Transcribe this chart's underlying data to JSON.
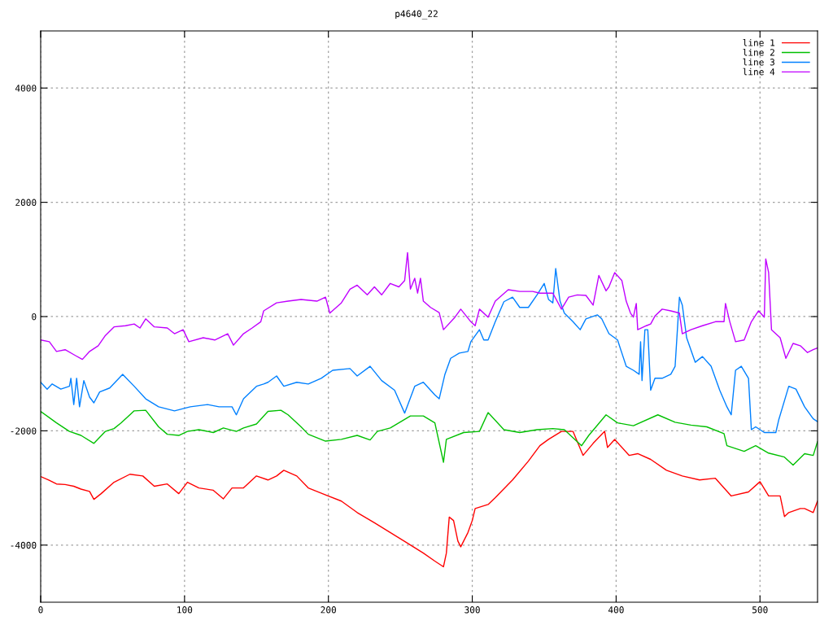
{
  "chart_data": {
    "type": "line",
    "title": "p4640_22",
    "xlim": [
      0,
      540
    ],
    "ylim": [
      -5000,
      5000
    ],
    "xticks": [
      0,
      100,
      200,
      300,
      400,
      500
    ],
    "yticks": [
      -4000,
      -2000,
      0,
      2000,
      4000
    ],
    "grid": true,
    "legend": "top right",
    "line_style": "solid",
    "marker": "none",
    "series": [
      {
        "name": "line 1",
        "color": "#ff0000",
        "x": [
          0,
          5.6,
          11,
          17,
          23,
          28,
          34,
          37,
          42,
          51,
          62,
          71,
          79,
          88,
          96,
          102,
          110,
          120,
          127,
          133,
          141,
          150,
          158,
          164,
          169,
          178,
          186,
          198,
          209,
          220,
          232,
          243,
          254,
          266,
          274,
          280,
          282,
          284,
          287,
          290,
          292,
          297,
          300,
          302,
          311,
          316,
          328,
          339,
          347,
          353,
          362,
          370,
          377,
          384,
          392,
          394,
          399,
          409,
          415,
          424,
          435,
          446,
          458,
          469,
          480,
          492,
          500,
          506,
          514,
          517,
          520,
          528,
          531,
          537,
          540
        ],
        "values": [
          -2800,
          -2860,
          -2930,
          -2940,
          -2970,
          -3020,
          -3060,
          -3200,
          -3100,
          -2900,
          -2760,
          -2790,
          -2970,
          -2930,
          -3100,
          -2900,
          -3000,
          -3040,
          -3190,
          -3000,
          -3000,
          -2790,
          -2860,
          -2790,
          -2690,
          -2790,
          -3000,
          -3120,
          -3230,
          -3430,
          -3610,
          -3780,
          -3950,
          -4140,
          -4280,
          -4380,
          -4140,
          -3510,
          -3570,
          -3930,
          -4030,
          -3780,
          -3570,
          -3360,
          -3290,
          -3170,
          -2860,
          -2530,
          -2260,
          -2150,
          -2010,
          -2010,
          -2430,
          -2220,
          -2010,
          -2290,
          -2150,
          -2430,
          -2400,
          -2500,
          -2690,
          -2790,
          -2860,
          -2830,
          -3140,
          -3070,
          -2890,
          -3140,
          -3140,
          -3500,
          -3430,
          -3360,
          -3360,
          -3430,
          -3230
        ]
      },
      {
        "name": "line 2",
        "color": "#00c000",
        "x": [
          0,
          11,
          20,
          28,
          37,
          45,
          51,
          56,
          65,
          73,
          82,
          88,
          96,
          102,
          110,
          120,
          127,
          136,
          141,
          150,
          158,
          167,
          172,
          181,
          186,
          198,
          209,
          220,
          229,
          234,
          243,
          257,
          266,
          274,
          280,
          282,
          294,
          305,
          311,
          322,
          333,
          345,
          356,
          364,
          376,
          381,
          393,
          401,
          412,
          429,
          441,
          452,
          463,
          475,
          477,
          489,
          497,
          506,
          517,
          523,
          531,
          537,
          540
        ],
        "values": [
          -1660,
          -1860,
          -2010,
          -2080,
          -2220,
          -2010,
          -1960,
          -1860,
          -1650,
          -1640,
          -1930,
          -2060,
          -2080,
          -2010,
          -1980,
          -2030,
          -1950,
          -2010,
          -1950,
          -1880,
          -1660,
          -1640,
          -1720,
          -1930,
          -2060,
          -2180,
          -2150,
          -2080,
          -2160,
          -2010,
          -1950,
          -1740,
          -1740,
          -1860,
          -2550,
          -2150,
          -2030,
          -2010,
          -1680,
          -1980,
          -2030,
          -1980,
          -1960,
          -1980,
          -2260,
          -2080,
          -1720,
          -1860,
          -1910,
          -1720,
          -1850,
          -1900,
          -1930,
          -2050,
          -2260,
          -2360,
          -2260,
          -2390,
          -2460,
          -2600,
          -2400,
          -2430,
          -2190
        ]
      },
      {
        "name": "line 3",
        "color": "#0080ff",
        "x": [
          0,
          4.5,
          8,
          14,
          20,
          21,
          23,
          25,
          27,
          30,
          34,
          37,
          41,
          48,
          57,
          65,
          73,
          82,
          93,
          104,
          116,
          124,
          133,
          136,
          141,
          150,
          155,
          158,
          164,
          169,
          178,
          186,
          195,
          203,
          215,
          220,
          229,
          237,
          246,
          253,
          260,
          266,
          274,
          277,
          281,
          285,
          291,
          297,
          299,
          305,
          308,
          311,
          316,
          322,
          328,
          333,
          339,
          345,
          350,
          353,
          356,
          358,
          361,
          364,
          370,
          375,
          379,
          387,
          390,
          395,
          401,
          407,
          412,
          416,
          417,
          418,
          420,
          422,
          424,
          427,
          432,
          438,
          441,
          444,
          446,
          449,
          455,
          460,
          466,
          472,
          477,
          480,
          483,
          487,
          492,
          494,
          497,
          503,
          511,
          513,
          520,
          525,
          531,
          537,
          540
        ],
        "values": [
          -1150,
          -1270,
          -1180,
          -1270,
          -1220,
          -1080,
          -1540,
          -1080,
          -1580,
          -1120,
          -1410,
          -1510,
          -1320,
          -1250,
          -1010,
          -1220,
          -1440,
          -1580,
          -1650,
          -1580,
          -1540,
          -1580,
          -1580,
          -1720,
          -1440,
          -1220,
          -1180,
          -1150,
          -1040,
          -1220,
          -1150,
          -1180,
          -1080,
          -940,
          -910,
          -1040,
          -870,
          -1120,
          -1290,
          -1690,
          -1220,
          -1150,
          -1370,
          -1440,
          -1010,
          -730,
          -640,
          -610,
          -440,
          -230,
          -410,
          -410,
          -90,
          260,
          340,
          160,
          160,
          380,
          580,
          300,
          240,
          840,
          270,
          60,
          -90,
          -230,
          -40,
          30,
          -40,
          -300,
          -410,
          -870,
          -940,
          -1010,
          -440,
          -1120,
          -230,
          -230,
          -1290,
          -1080,
          -1080,
          -1010,
          -870,
          340,
          200,
          -370,
          -800,
          -700,
          -870,
          -1290,
          -1580,
          -1720,
          -940,
          -870,
          -1080,
          -1980,
          -1930,
          -2030,
          -2030,
          -1810,
          -1220,
          -1270,
          -1580,
          -1790,
          -1840
        ]
      },
      {
        "name": "line 4",
        "color": "#c000ff",
        "x": [
          0,
          6,
          11,
          17,
          24,
          29,
          34,
          40,
          45,
          51,
          59,
          65,
          69,
          73,
          79,
          88,
          93,
          99,
          103,
          113,
          121,
          130,
          134,
          141,
          147,
          153,
          155,
          164,
          172,
          181,
          192,
          198,
          201,
          209,
          215,
          220,
          227,
          232,
          237,
          243,
          249,
          253,
          255,
          257,
          260,
          262,
          264,
          266,
          271,
          277,
          280,
          288,
          292,
          299,
          302,
          305,
          311,
          316,
          325,
          333,
          342,
          347,
          356,
          362,
          367,
          373,
          379,
          384,
          388,
          393,
          395,
          399,
          404,
          407,
          410,
          412,
          414,
          415,
          421,
          424,
          427,
          432,
          438,
          444,
          446,
          452,
          460,
          469,
          475,
          476,
          479,
          483,
          489,
          494,
          499,
          503,
          504,
          506,
          508,
          514,
          518,
          523,
          528,
          533,
          537,
          540
        ],
        "values": [
          -410,
          -440,
          -610,
          -580,
          -680,
          -750,
          -610,
          -510,
          -330,
          -180,
          -160,
          -130,
          -200,
          -40,
          -180,
          -200,
          -300,
          -230,
          -440,
          -370,
          -410,
          -300,
          -500,
          -300,
          -200,
          -90,
          100,
          240,
          270,
          300,
          270,
          340,
          60,
          240,
          480,
          550,
          380,
          520,
          380,
          580,
          520,
          630,
          1120,
          480,
          670,
          410,
          670,
          270,
          160,
          70,
          -230,
          -10,
          130,
          -90,
          -160,
          130,
          -10,
          270,
          470,
          440,
          440,
          410,
          410,
          130,
          340,
          380,
          370,
          200,
          720,
          450,
          520,
          770,
          630,
          270,
          60,
          -10,
          230,
          -230,
          -160,
          -130,
          10,
          130,
          100,
          60,
          -300,
          -230,
          -160,
          -90,
          -90,
          230,
          -90,
          -440,
          -410,
          -90,
          100,
          -10,
          1010,
          770,
          -230,
          -370,
          -730,
          -470,
          -510,
          -630,
          -580,
          -550
        ]
      }
    ]
  }
}
